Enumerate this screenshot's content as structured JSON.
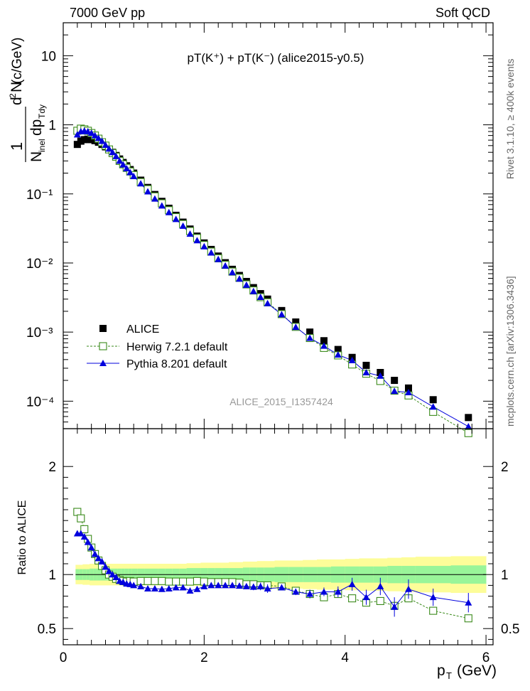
{
  "header": {
    "energy_label": "7000 GeV pp",
    "process_label": "Soft QCD"
  },
  "side_labels": {
    "rivet": "Rivet 3.1.10, ≥ 400k events",
    "mcplots": "mcplots.cern.ch [arXiv:1306.3436]"
  },
  "analysis_id": "ALICE_2015_I1357424",
  "colors": {
    "alice": "#000000",
    "herwig": "#3a8a1a",
    "pythia": "#0000dd",
    "band_yellow": "#fdfd99",
    "band_green": "#99f599"
  },
  "chart_data": [
    {
      "type": "scatter",
      "title": "pT(K⁺) + pT(K⁻) (alice2015-y0.5)",
      "ylabel": "1/N_inel d²N/dp_T dy (c/GeV)",
      "xlabel": "",
      "xlim": [
        0,
        6.1
      ],
      "ylim": [
        4e-05,
        30
      ],
      "yscale": "log",
      "x_ticks": [
        "0",
        "2",
        "4",
        "6"
      ],
      "y_ticks": [
        "10⁻⁴",
        "10⁻³",
        "10⁻²",
        "10⁻¹",
        "1",
        "10"
      ],
      "legend_position": "lower-left",
      "x": [
        0.2,
        0.25,
        0.3,
        0.35,
        0.4,
        0.45,
        0.5,
        0.55,
        0.6,
        0.65,
        0.7,
        0.75,
        0.8,
        0.85,
        0.9,
        0.95,
        1.0,
        1.1,
        1.2,
        1.3,
        1.4,
        1.5,
        1.6,
        1.7,
        1.8,
        1.9,
        2.0,
        2.1,
        2.2,
        2.3,
        2.4,
        2.5,
        2.6,
        2.7,
        2.8,
        2.9,
        3.1,
        3.3,
        3.5,
        3.7,
        3.9,
        4.1,
        4.3,
        4.5,
        4.7,
        4.9,
        5.25,
        5.75
      ],
      "series": [
        {
          "name": "ALICE",
          "marker": "filled-square",
          "values": [
            0.52,
            0.58,
            0.61,
            0.62,
            0.61,
            0.59,
            0.56,
            0.52,
            0.48,
            0.44,
            0.4,
            0.36,
            0.32,
            0.285,
            0.255,
            0.225,
            0.2,
            0.158,
            0.124,
            0.098,
            0.078,
            0.062,
            0.049,
            0.039,
            0.031,
            0.0245,
            0.0195,
            0.0157,
            0.0126,
            0.0101,
            0.0081,
            0.0066,
            0.0054,
            0.0044,
            0.0036,
            0.003,
            0.00205,
            0.0014,
            0.001,
            0.00075,
            0.00056,
            0.00043,
            0.00033,
            0.00026,
            0.0002,
            0.000155,
            0.000105,
            5.8e-05
          ]
        },
        {
          "name": "Herwig 7.2.1 default",
          "marker": "open-square",
          "values": [
            0.82,
            0.88,
            0.86,
            0.82,
            0.76,
            0.7,
            0.63,
            0.56,
            0.5,
            0.44,
            0.39,
            0.345,
            0.3,
            0.268,
            0.238,
            0.211,
            0.187,
            0.148,
            0.117,
            0.092,
            0.073,
            0.058,
            0.046,
            0.0366,
            0.029,
            0.023,
            0.0182,
            0.0146,
            0.0117,
            0.0094,
            0.0075,
            0.0061,
            0.0049,
            0.004,
            0.0032,
            0.0027,
            0.00182,
            0.00119,
            0.00082,
            0.00059,
            0.00046,
            0.00034,
            0.00025,
            0.000196,
            0.000142,
            0.000121,
            7e-05,
            3.45e-05
          ]
        },
        {
          "name": "Pythia 8.201 default",
          "marker": "filled-triangle",
          "values": [
            0.72,
            0.8,
            0.82,
            0.8,
            0.76,
            0.7,
            0.64,
            0.58,
            0.51,
            0.45,
            0.4,
            0.35,
            0.3,
            0.265,
            0.233,
            0.205,
            0.18,
            0.141,
            0.108,
            0.085,
            0.0675,
            0.054,
            0.043,
            0.0343,
            0.0264,
            0.0212,
            0.0173,
            0.0141,
            0.0113,
            0.0091,
            0.0073,
            0.0059,
            0.0048,
            0.0039,
            0.0032,
            0.0026,
            0.0018,
            0.00118,
            0.00082,
            0.00063,
            0.00047,
            0.00039,
            0.00026,
            0.000232,
            0.00014,
            0.000134,
            8.3e-05,
            4.3e-05
          ]
        }
      ]
    },
    {
      "type": "line",
      "ylabel": "Ratio to ALICE",
      "xlabel": "p_T (GeV)",
      "xlim": [
        0,
        6.1
      ],
      "ylim": [
        0.35,
        2.35
      ],
      "x_ticks": [
        "0",
        "2",
        "4",
        "6"
      ],
      "y_ticks": [
        "0.5",
        "1",
        "2"
      ],
      "x": [
        0.2,
        0.25,
        0.3,
        0.35,
        0.4,
        0.45,
        0.5,
        0.55,
        0.6,
        0.65,
        0.7,
        0.75,
        0.8,
        0.85,
        0.9,
        0.95,
        1.0,
        1.1,
        1.2,
        1.3,
        1.4,
        1.5,
        1.6,
        1.7,
        1.8,
        1.9,
        2.0,
        2.1,
        2.2,
        2.3,
        2.4,
        2.5,
        2.6,
        2.7,
        2.8,
        2.9,
        3.1,
        3.3,
        3.5,
        3.7,
        3.9,
        4.1,
        4.3,
        4.5,
        4.7,
        4.9,
        5.25,
        5.75
      ],
      "band_edges": [
        0.175,
        0.225,
        0.275,
        0.325,
        0.375,
        0.425,
        0.475,
        0.525,
        0.575,
        0.625,
        0.675,
        0.725,
        0.775,
        0.825,
        0.875,
        0.925,
        0.975,
        1.05,
        1.15,
        1.25,
        1.35,
        1.45,
        1.55,
        1.65,
        1.75,
        1.85,
        1.95,
        2.05,
        2.15,
        2.25,
        2.35,
        2.45,
        2.55,
        2.65,
        2.75,
        2.85,
        3.0,
        3.2,
        3.4,
        3.6,
        3.8,
        4.0,
        4.2,
        4.4,
        4.6,
        4.8,
        5.0,
        5.5,
        6.0
      ],
      "band_yellow_halfwidth": [
        0.09,
        0.09,
        0.095,
        0.095,
        0.1,
        0.1,
        0.1,
        0.1,
        0.1,
        0.1,
        0.1,
        0.1,
        0.1,
        0.1,
        0.1,
        0.1,
        0.1,
        0.1,
        0.1,
        0.1,
        0.1,
        0.1,
        0.1,
        0.1,
        0.105,
        0.105,
        0.11,
        0.11,
        0.11,
        0.11,
        0.115,
        0.115,
        0.12,
        0.12,
        0.125,
        0.125,
        0.13,
        0.13,
        0.135,
        0.14,
        0.14,
        0.145,
        0.15,
        0.15,
        0.155,
        0.16,
        0.165,
        0.17
      ],
      "band_green_halfwidth": [
        0.05,
        0.05,
        0.05,
        0.05,
        0.055,
        0.055,
        0.055,
        0.055,
        0.055,
        0.055,
        0.055,
        0.055,
        0.055,
        0.055,
        0.055,
        0.055,
        0.055,
        0.055,
        0.055,
        0.055,
        0.055,
        0.055,
        0.055,
        0.055,
        0.06,
        0.06,
        0.06,
        0.06,
        0.06,
        0.06,
        0.06,
        0.06,
        0.065,
        0.065,
        0.065,
        0.065,
        0.07,
        0.07,
        0.07,
        0.07,
        0.075,
        0.075,
        0.075,
        0.075,
        0.08,
        0.08,
        0.08,
        0.085
      ],
      "series": [
        {
          "name": "Herwig 7.2.1 default",
          "marker": "open-square",
          "line": "dashed",
          "values": [
            1.58,
            1.52,
            1.42,
            1.33,
            1.25,
            1.19,
            1.13,
            1.08,
            1.04,
            1.0,
            0.98,
            0.96,
            0.95,
            0.94,
            0.935,
            0.94,
            0.935,
            0.94,
            0.94,
            0.94,
            0.94,
            0.935,
            0.935,
            0.935,
            0.935,
            0.94,
            0.935,
            0.93,
            0.93,
            0.93,
            0.93,
            0.925,
            0.91,
            0.91,
            0.9,
            0.9,
            0.89,
            0.85,
            0.82,
            0.79,
            0.82,
            0.78,
            0.74,
            0.755,
            0.71,
            0.78,
            0.665,
            0.595
          ],
          "errors": [
            0,
            0,
            0,
            0,
            0,
            0,
            0,
            0,
            0,
            0,
            0,
            0,
            0,
            0,
            0,
            0,
            0,
            0,
            0,
            0,
            0,
            0,
            0,
            0,
            0,
            0,
            0,
            0,
            0,
            0,
            0,
            0,
            0,
            0,
            0,
            0,
            0,
            0,
            0,
            0,
            0,
            0,
            0,
            0,
            0,
            0.02,
            0.02,
            0.03
          ]
        },
        {
          "name": "Pythia 8.201 default",
          "marker": "filled-triangle",
          "line": "solid",
          "values": [
            1.38,
            1.38,
            1.35,
            1.3,
            1.25,
            1.19,
            1.15,
            1.12,
            1.07,
            1.03,
            1.0,
            0.975,
            0.94,
            0.93,
            0.915,
            0.91,
            0.9,
            0.89,
            0.87,
            0.87,
            0.865,
            0.87,
            0.88,
            0.88,
            0.85,
            0.865,
            0.89,
            0.9,
            0.9,
            0.9,
            0.9,
            0.895,
            0.89,
            0.885,
            0.89,
            0.87,
            0.88,
            0.84,
            0.82,
            0.84,
            0.84,
            0.91,
            0.79,
            0.89,
            0.7,
            0.865,
            0.79,
            0.74
          ],
          "errors": [
            0,
            0,
            0,
            0,
            0,
            0,
            0,
            0,
            0,
            0,
            0,
            0,
            0,
            0,
            0,
            0,
            0,
            0,
            0,
            0,
            0,
            0,
            0,
            0,
            0,
            0,
            0,
            0,
            0,
            0,
            0.02,
            0.02,
            0.025,
            0.03,
            0.035,
            0.04,
            0.025,
            0.03,
            0.04,
            0.04,
            0.05,
            0.06,
            0.07,
            0.08,
            0.09,
            0.09,
            0.08,
            0.09
          ]
        }
      ]
    }
  ]
}
